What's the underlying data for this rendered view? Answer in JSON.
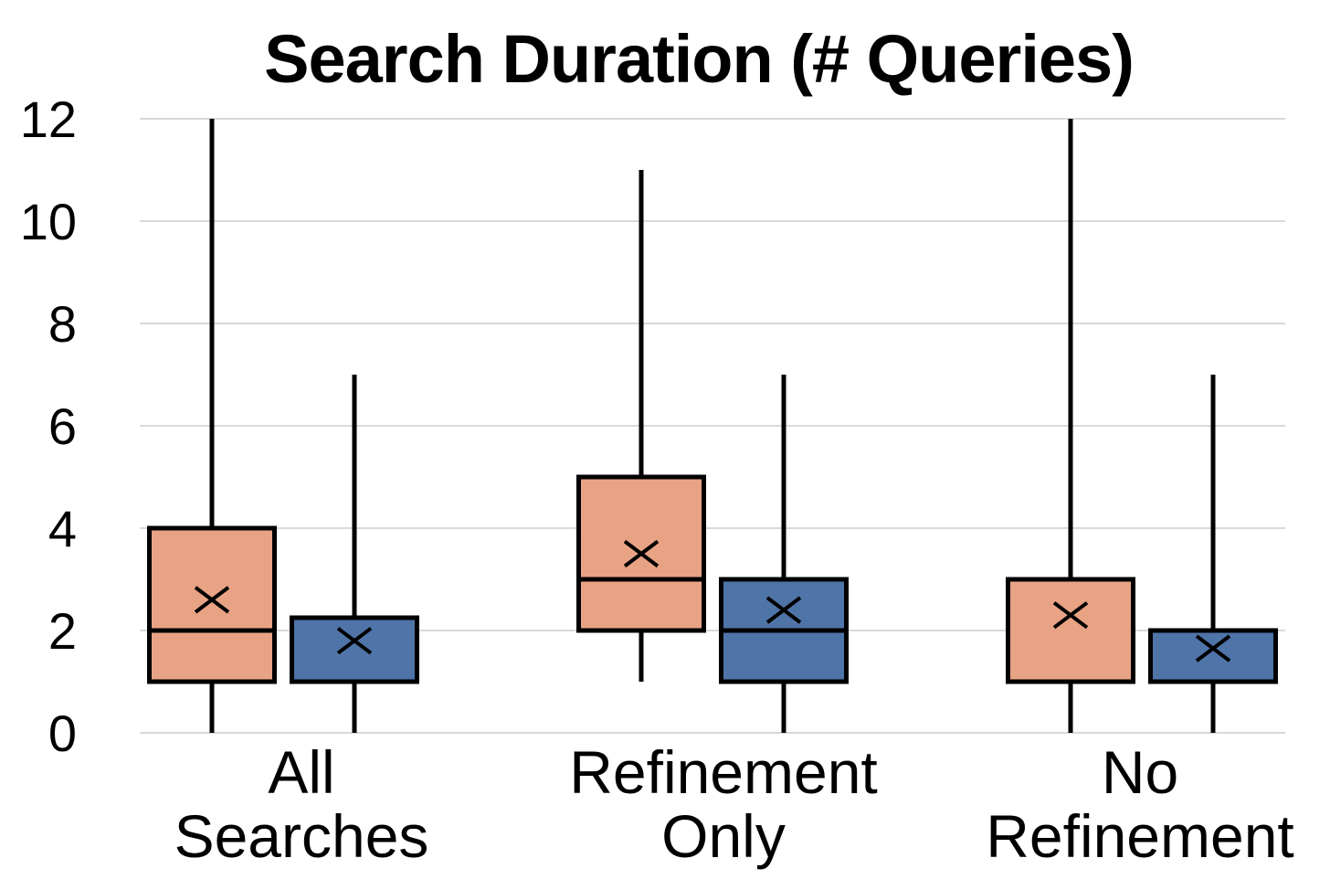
{
  "chart_data": {
    "type": "box",
    "title": "Search Duration (# Queries)",
    "xlabel": "",
    "ylabel": "",
    "ylim": [
      0,
      12
    ],
    "yticks": [
      "0",
      "2",
      "4",
      "6",
      "8",
      "10",
      "12"
    ],
    "grid": true,
    "legend": "none",
    "categories": [
      [
        "All",
        "Searches"
      ],
      [
        "Refinement",
        "Only"
      ],
      [
        "No",
        "Refinement"
      ]
    ],
    "series": [
      {
        "color": "#E8A385",
        "boxes": [
          {
            "min": 0,
            "q1": 1,
            "median": 2,
            "q3": 4,
            "max": 12,
            "mean": 2.6
          },
          {
            "min": 1,
            "q1": 2,
            "median": 3,
            "q3": 5,
            "max": 11,
            "mean": 3.5
          },
          {
            "min": 0,
            "q1": 1,
            "median": 1,
            "q3": 3,
            "max": 12,
            "mean": 2.3
          }
        ]
      },
      {
        "color": "#4F74A8",
        "boxes": [
          {
            "min": 0,
            "q1": 1,
            "median": 1,
            "q3": 2.25,
            "max": 7,
            "mean": 1.8
          },
          {
            "min": 0,
            "q1": 1,
            "median": 2,
            "q3": 3,
            "max": 7,
            "mean": 2.4
          },
          {
            "min": 0,
            "q1": 1,
            "median": 1,
            "q3": 2,
            "max": 7,
            "mean": 1.65
          }
        ]
      }
    ]
  }
}
